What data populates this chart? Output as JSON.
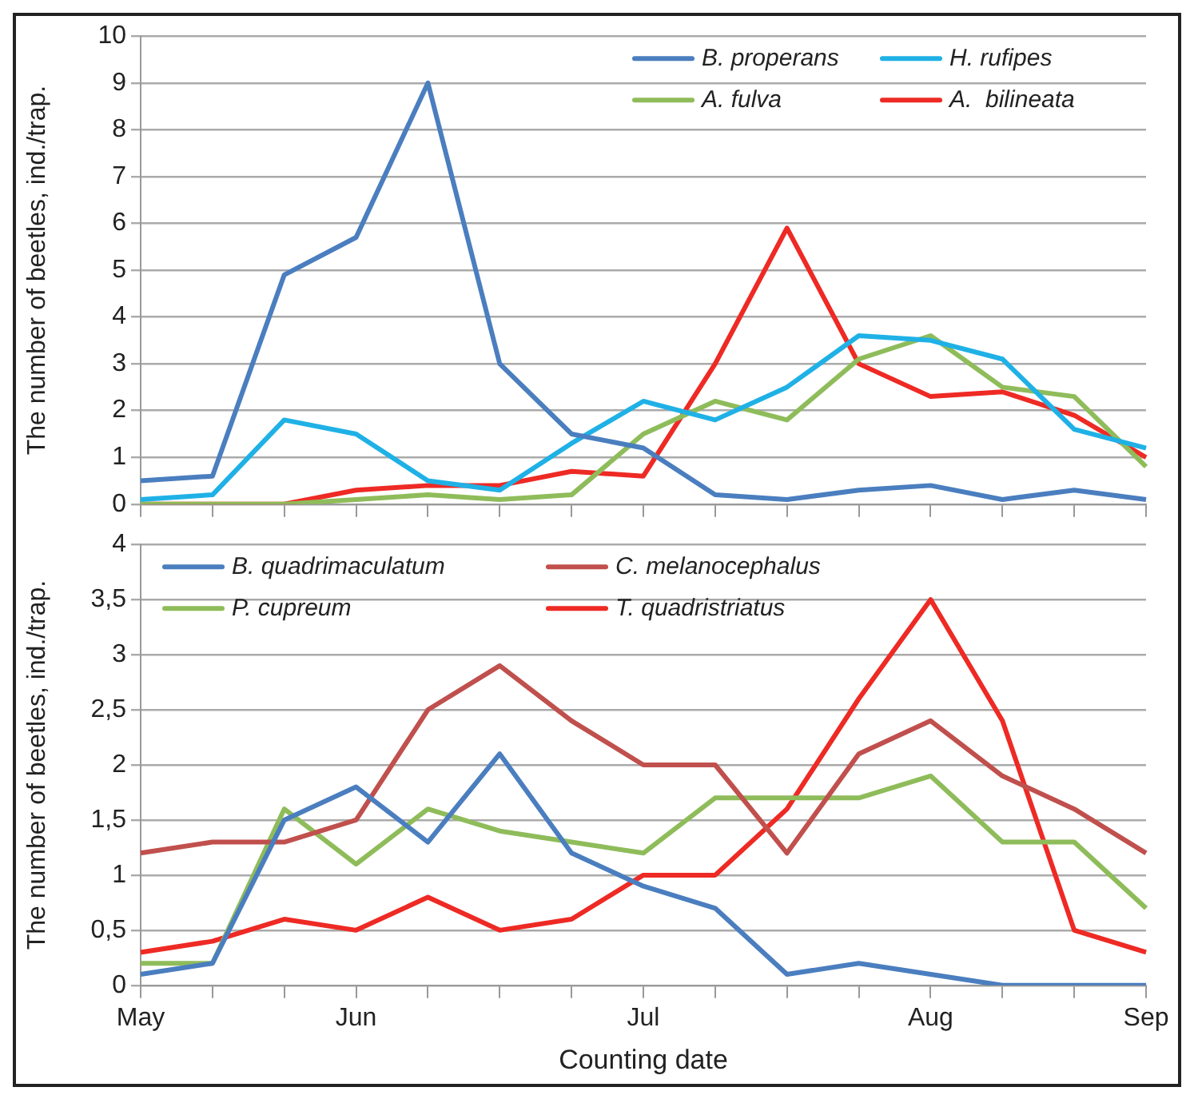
{
  "chart_data": [
    {
      "type": "line",
      "ylabel": "The number of beetles, ind./trap.",
      "categories": [
        null,
        null,
        null,
        null,
        null,
        null,
        null,
        null,
        null,
        null,
        null,
        null,
        null,
        null,
        null
      ],
      "ylim": [
        0,
        10
      ],
      "yticks": [
        0,
        1,
        2,
        3,
        4,
        5,
        6,
        7,
        8,
        9,
        10
      ],
      "grid": "y",
      "legend": "top right",
      "tick_labels": "y",
      "line_style": "solid",
      "marker": "none",
      "series": [
        {
          "name": "B. properans",
          "color": "#4a7ebf",
          "values": [
            0.5,
            0.6,
            4.9,
            5.7,
            9.0,
            3.0,
            1.5,
            1.2,
            0.2,
            0.1,
            0.3,
            0.4,
            0.1,
            0.3,
            0.1
          ]
        },
        {
          "name": "H. rufipes",
          "color": "#1fb1e6",
          "values": [
            0.1,
            0.2,
            1.8,
            1.5,
            0.5,
            0.3,
            1.3,
            2.2,
            1.8,
            2.5,
            3.6,
            3.5,
            3.1,
            1.6,
            1.2
          ]
        },
        {
          "name": "A. fulva",
          "color": "#8fbc5a",
          "values": [
            0,
            0,
            0,
            0.1,
            0.2,
            0.1,
            0.2,
            1.5,
            2.2,
            1.8,
            3.1,
            3.6,
            2.5,
            2.3,
            0.8
          ]
        },
        {
          "name": "A.  bilineata",
          "color": "#ee2a24",
          "values": [
            0,
            0,
            0,
            0.3,
            0.4,
            0.4,
            0.7,
            0.6,
            3.0,
            5.9,
            3.0,
            2.3,
            2.4,
            1.9,
            1.0
          ]
        }
      ]
    },
    {
      "type": "line",
      "ylabel": "The number of beetles, ind./trap.",
      "xlabel": "Counting date",
      "categories": [
        "May",
        null,
        null,
        "Jun",
        null,
        null,
        null,
        "Jul",
        null,
        null,
        null,
        "Aug",
        null,
        null,
        "Sep"
      ],
      "ylim": [
        0,
        4
      ],
      "yticks": [
        0,
        {
          "value": 0.5,
          "label": "0,5"
        },
        1,
        {
          "value": 1.5,
          "label": "1,5"
        },
        2,
        {
          "value": 2.5,
          "label": "2,5"
        },
        3,
        {
          "value": 3.5,
          "label": "3,5"
        },
        4
      ],
      "grid": "y",
      "legend": "top left",
      "line_style": "solid",
      "marker": "none",
      "series": [
        {
          "name": "B. quadrimaculatum",
          "color": "#4a7ebf",
          "values": [
            0.1,
            0.2,
            1.5,
            1.8,
            1.3,
            2.1,
            1.2,
            0.9,
            0.7,
            0.1,
            0.2,
            0.1,
            0,
            0,
            0
          ]
        },
        {
          "name": "C. melanocephalus",
          "color": "#c0504d",
          "values": [
            1.2,
            1.3,
            1.3,
            1.5,
            2.5,
            2.9,
            2.4,
            2.0,
            2.0,
            1.2,
            2.1,
            2.4,
            1.9,
            1.6,
            1.2
          ]
        },
        {
          "name": "P. cupreum",
          "color": "#8fbc5a",
          "values": [
            0.2,
            0.2,
            1.6,
            1.1,
            1.6,
            1.4,
            1.3,
            1.2,
            1.7,
            1.7,
            1.7,
            1.9,
            1.3,
            1.3,
            0.7
          ]
        },
        {
          "name": "T. quadristriatus",
          "color": "#ee2a24",
          "values": [
            0.3,
            0.4,
            0.6,
            0.5,
            0.8,
            0.5,
            0.6,
            1.0,
            1.0,
            1.6,
            2.6,
            3.5,
            2.4,
            0.5,
            0.3
          ]
        }
      ]
    }
  ]
}
